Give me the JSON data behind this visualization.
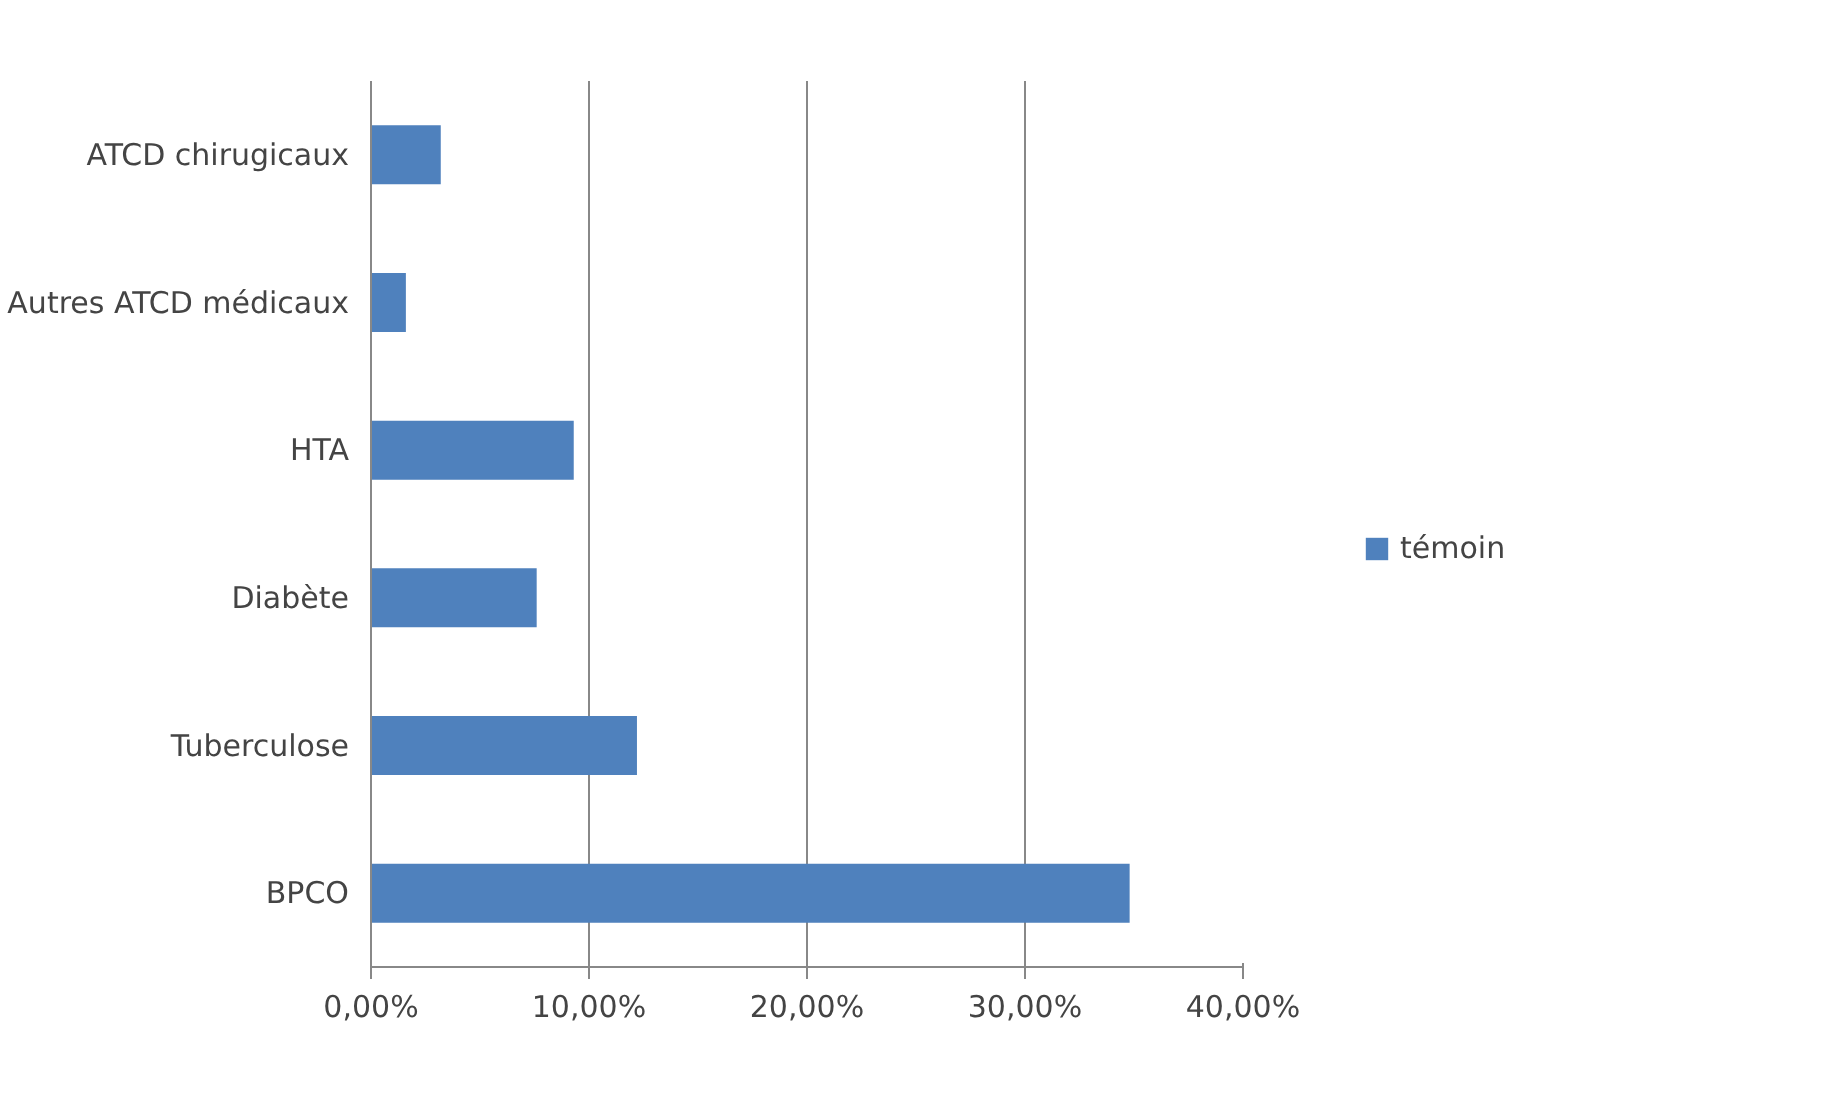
{
  "chart_data": {
    "type": "bar",
    "orientation": "horizontal",
    "categories": [
      "ATCD chirugicaux",
      "Autres ATCD médicaux",
      "HTA",
      "Diabète",
      "Tuberculose",
      "BPCO"
    ],
    "series": [
      {
        "name": "témoin",
        "color": "#4f81bd",
        "values": [
          3.2,
          1.6,
          9.3,
          7.6,
          12.2,
          34.8
        ]
      }
    ],
    "xlim": [
      0,
      40
    ],
    "xticks": [
      {
        "value": 0,
        "label": "0,00%"
      },
      {
        "value": 10,
        "label": "10,00%"
      },
      {
        "value": 20,
        "label": "20,00%"
      },
      {
        "value": 30,
        "label": "30,00%"
      },
      {
        "value": 40,
        "label": "40,00%"
      }
    ],
    "grid": "x",
    "legend": "right"
  }
}
